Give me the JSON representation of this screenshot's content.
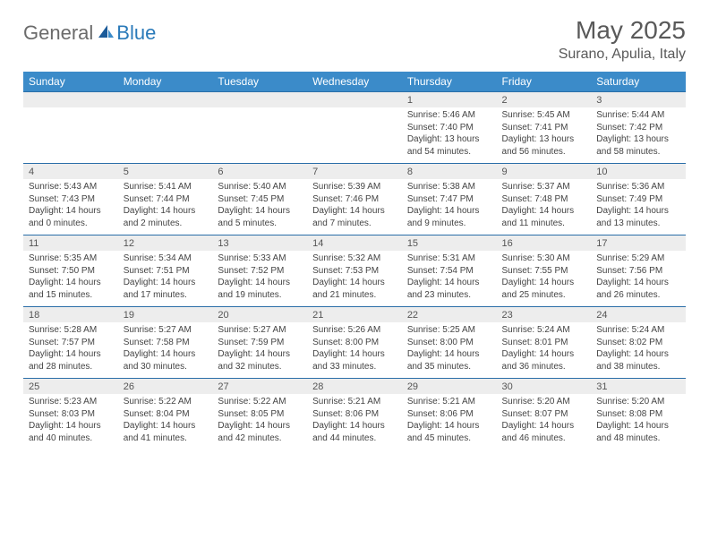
{
  "logo": {
    "general": "General",
    "blue": "Blue"
  },
  "title": "May 2025",
  "location": "Surano, Apulia, Italy",
  "colors": {
    "header_bg": "#3b8bc9",
    "header_text": "#ffffff",
    "daynum_bg": "#ededed",
    "row_divider": "#2a6ea8",
    "logo_gray": "#6b6b6b",
    "logo_blue": "#2a7ab9",
    "text": "#444444",
    "title_color": "#595959",
    "background": "#ffffff"
  },
  "weekdays": [
    "Sunday",
    "Monday",
    "Tuesday",
    "Wednesday",
    "Thursday",
    "Friday",
    "Saturday"
  ],
  "weeks": [
    [
      null,
      null,
      null,
      null,
      {
        "n": "1",
        "sr": "5:46 AM",
        "ss": "7:40 PM",
        "dl": "13 hours and 54 minutes."
      },
      {
        "n": "2",
        "sr": "5:45 AM",
        "ss": "7:41 PM",
        "dl": "13 hours and 56 minutes."
      },
      {
        "n": "3",
        "sr": "5:44 AM",
        "ss": "7:42 PM",
        "dl": "13 hours and 58 minutes."
      }
    ],
    [
      {
        "n": "4",
        "sr": "5:43 AM",
        "ss": "7:43 PM",
        "dl": "14 hours and 0 minutes."
      },
      {
        "n": "5",
        "sr": "5:41 AM",
        "ss": "7:44 PM",
        "dl": "14 hours and 2 minutes."
      },
      {
        "n": "6",
        "sr": "5:40 AM",
        "ss": "7:45 PM",
        "dl": "14 hours and 5 minutes."
      },
      {
        "n": "7",
        "sr": "5:39 AM",
        "ss": "7:46 PM",
        "dl": "14 hours and 7 minutes."
      },
      {
        "n": "8",
        "sr": "5:38 AM",
        "ss": "7:47 PM",
        "dl": "14 hours and 9 minutes."
      },
      {
        "n": "9",
        "sr": "5:37 AM",
        "ss": "7:48 PM",
        "dl": "14 hours and 11 minutes."
      },
      {
        "n": "10",
        "sr": "5:36 AM",
        "ss": "7:49 PM",
        "dl": "14 hours and 13 minutes."
      }
    ],
    [
      {
        "n": "11",
        "sr": "5:35 AM",
        "ss": "7:50 PM",
        "dl": "14 hours and 15 minutes."
      },
      {
        "n": "12",
        "sr": "5:34 AM",
        "ss": "7:51 PM",
        "dl": "14 hours and 17 minutes."
      },
      {
        "n": "13",
        "sr": "5:33 AM",
        "ss": "7:52 PM",
        "dl": "14 hours and 19 minutes."
      },
      {
        "n": "14",
        "sr": "5:32 AM",
        "ss": "7:53 PM",
        "dl": "14 hours and 21 minutes."
      },
      {
        "n": "15",
        "sr": "5:31 AM",
        "ss": "7:54 PM",
        "dl": "14 hours and 23 minutes."
      },
      {
        "n": "16",
        "sr": "5:30 AM",
        "ss": "7:55 PM",
        "dl": "14 hours and 25 minutes."
      },
      {
        "n": "17",
        "sr": "5:29 AM",
        "ss": "7:56 PM",
        "dl": "14 hours and 26 minutes."
      }
    ],
    [
      {
        "n": "18",
        "sr": "5:28 AM",
        "ss": "7:57 PM",
        "dl": "14 hours and 28 minutes."
      },
      {
        "n": "19",
        "sr": "5:27 AM",
        "ss": "7:58 PM",
        "dl": "14 hours and 30 minutes."
      },
      {
        "n": "20",
        "sr": "5:27 AM",
        "ss": "7:59 PM",
        "dl": "14 hours and 32 minutes."
      },
      {
        "n": "21",
        "sr": "5:26 AM",
        "ss": "8:00 PM",
        "dl": "14 hours and 33 minutes."
      },
      {
        "n": "22",
        "sr": "5:25 AM",
        "ss": "8:00 PM",
        "dl": "14 hours and 35 minutes."
      },
      {
        "n": "23",
        "sr": "5:24 AM",
        "ss": "8:01 PM",
        "dl": "14 hours and 36 minutes."
      },
      {
        "n": "24",
        "sr": "5:24 AM",
        "ss": "8:02 PM",
        "dl": "14 hours and 38 minutes."
      }
    ],
    [
      {
        "n": "25",
        "sr": "5:23 AM",
        "ss": "8:03 PM",
        "dl": "14 hours and 40 minutes."
      },
      {
        "n": "26",
        "sr": "5:22 AM",
        "ss": "8:04 PM",
        "dl": "14 hours and 41 minutes."
      },
      {
        "n": "27",
        "sr": "5:22 AM",
        "ss": "8:05 PM",
        "dl": "14 hours and 42 minutes."
      },
      {
        "n": "28",
        "sr": "5:21 AM",
        "ss": "8:06 PM",
        "dl": "14 hours and 44 minutes."
      },
      {
        "n": "29",
        "sr": "5:21 AM",
        "ss": "8:06 PM",
        "dl": "14 hours and 45 minutes."
      },
      {
        "n": "30",
        "sr": "5:20 AM",
        "ss": "8:07 PM",
        "dl": "14 hours and 46 minutes."
      },
      {
        "n": "31",
        "sr": "5:20 AM",
        "ss": "8:08 PM",
        "dl": "14 hours and 48 minutes."
      }
    ]
  ],
  "labels": {
    "sunrise": "Sunrise: ",
    "sunset": "Sunset: ",
    "daylight": "Daylight: "
  }
}
